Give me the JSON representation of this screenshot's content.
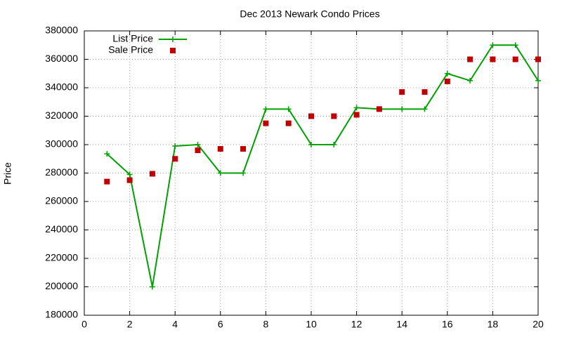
{
  "chart_data": {
    "type": "line",
    "title": "Dec 2013 Newark Condo Prices",
    "y_label": "Price",
    "x": [
      1,
      2,
      3,
      4,
      5,
      6,
      7,
      8,
      9,
      10,
      11,
      12,
      13,
      14,
      15,
      16,
      17,
      18,
      19,
      20
    ],
    "series": [
      {
        "name": "List Price",
        "color": "#00a000",
        "style": "linespoints",
        "values": [
          293500,
          279000,
          200000,
          299000,
          300000,
          280000,
          280000,
          325000,
          325000,
          300000,
          300000,
          326000,
          325000,
          325000,
          325000,
          350000,
          345000,
          370000,
          370000,
          345000
        ]
      },
      {
        "name": "Sale Price",
        "color": "#c00000",
        "style": "points",
        "values": [
          274000,
          275000,
          279500,
          290000,
          296000,
          297000,
          297000,
          315000,
          315000,
          320000,
          320000,
          321000,
          325000,
          337000,
          337000,
          344500,
          360000,
          360000,
          360000,
          360000
        ]
      }
    ],
    "xlim": [
      0,
      20
    ],
    "xticks": [
      0,
      2,
      4,
      6,
      8,
      10,
      12,
      14,
      16,
      18,
      20
    ],
    "ylim": [
      180000,
      380000
    ],
    "yticks": [
      180000,
      200000,
      220000,
      240000,
      260000,
      280000,
      300000,
      320000,
      340000,
      360000,
      380000
    ],
    "grid": true,
    "legend": "top-left"
  }
}
